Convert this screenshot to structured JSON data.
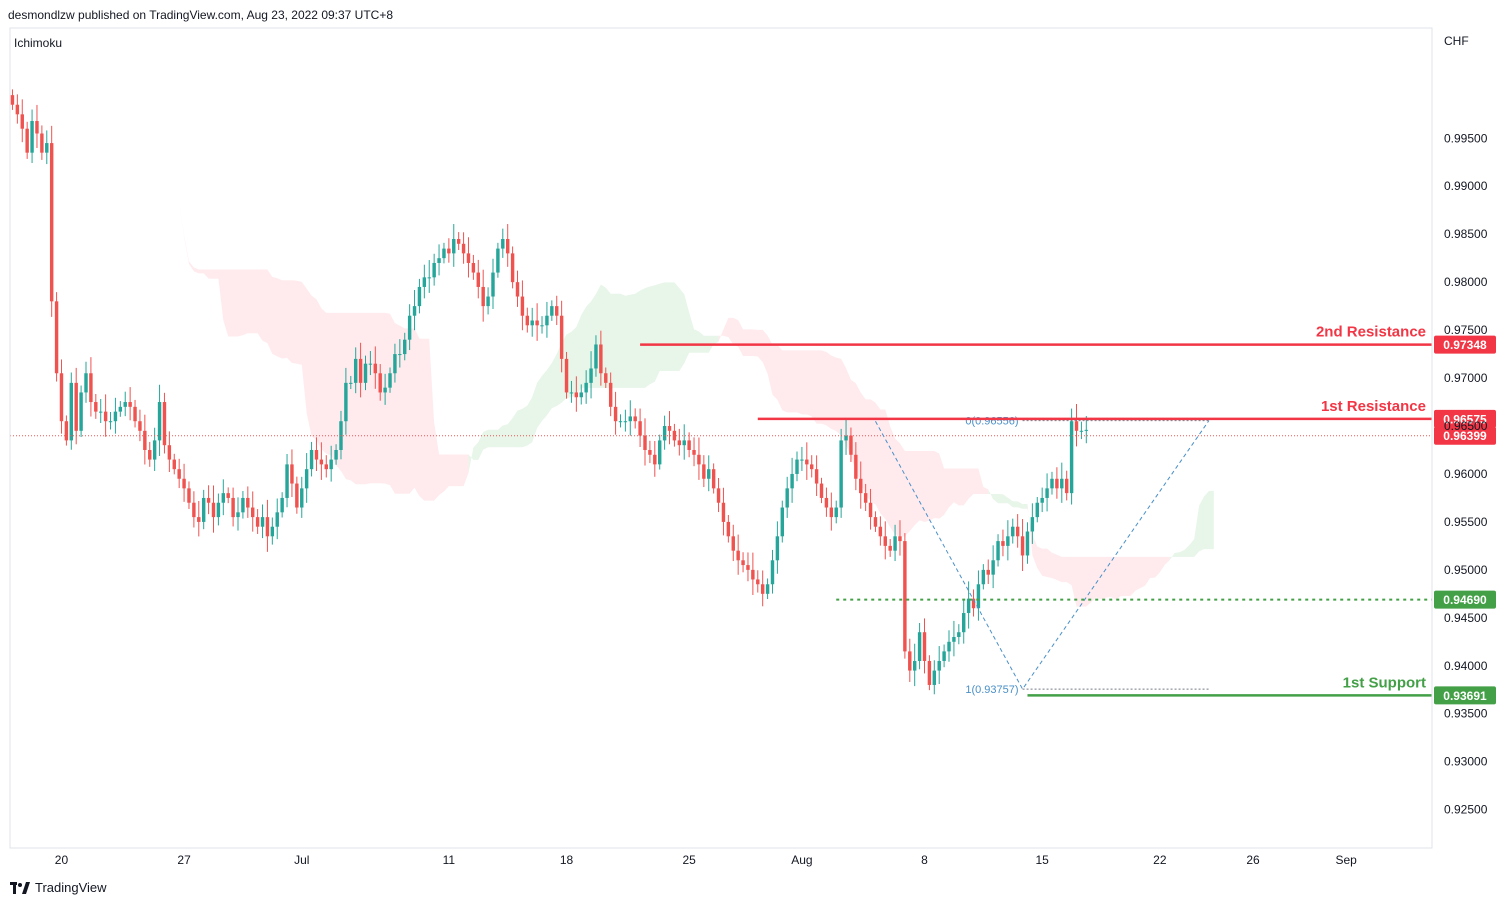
{
  "header": {
    "publisher": "desmondlzw published on TradingView.com, Aug 23, 2022 09:37 UTC+8"
  },
  "indicator": {
    "name": "Ichimoku"
  },
  "footer": {
    "brand": "TradingView"
  },
  "colors": {
    "bull": "#26a69a",
    "bear": "#ef5350",
    "resistance": "#f23645",
    "support": "#43a047",
    "support_dark": "#2e7d32",
    "fib": "#4a90c8",
    "cloud_green": "#e8f5e9",
    "cloud_red": "#ffebee"
  },
  "chart_data": {
    "type": "candlestick",
    "currency": "CHF",
    "ylim": [
      0.921,
      1.0065
    ],
    "y_ticks": [
      "0.99500",
      "0.99000",
      "0.98500",
      "0.98000",
      "0.97500",
      "0.97000",
      "0.96500",
      "0.96000",
      "0.95500",
      "0.95000",
      "0.94500",
      "0.94000",
      "0.93500",
      "0.93000",
      "0.92500"
    ],
    "y_tick_values": [
      0.995,
      0.99,
      0.985,
      0.98,
      0.975,
      0.97,
      0.965,
      0.96,
      0.955,
      0.95,
      0.945,
      0.94,
      0.935,
      0.93,
      0.925
    ],
    "x_ticks": [
      "20",
      "27",
      "Jul",
      "11",
      "18",
      "25",
      "Aug",
      "8",
      "15",
      "22",
      "26",
      "Sep"
    ],
    "x_tick_bars": [
      10,
      35,
      59,
      89,
      113,
      138,
      161,
      186,
      210,
      234,
      253,
      272
    ],
    "total_bars": 290,
    "candles_close": [
      0.9985,
      0.9975,
      0.996,
      0.9935,
      0.9968,
      0.9955,
      0.9935,
      0.9945,
      0.978,
      0.9705,
      0.9655,
      0.9635,
      0.9695,
      0.9645,
      0.9685,
      0.9705,
      0.9675,
      0.9665,
      0.9665,
      0.9655,
      0.9655,
      0.9665,
      0.967,
      0.9675,
      0.967,
      0.9655,
      0.9645,
      0.9625,
      0.9615,
      0.9635,
      0.9675,
      0.963,
      0.9615,
      0.9605,
      0.9595,
      0.9585,
      0.957,
      0.9555,
      0.955,
      0.9575,
      0.957,
      0.9555,
      0.957,
      0.958,
      0.9575,
      0.9555,
      0.956,
      0.9575,
      0.9565,
      0.9555,
      0.9545,
      0.9555,
      0.9535,
      0.9545,
      0.956,
      0.9575,
      0.961,
      0.959,
      0.9565,
      0.9585,
      0.9605,
      0.9625,
      0.9615,
      0.961,
      0.9605,
      0.9615,
      0.9625,
      0.9655,
      0.9695,
      0.9695,
      0.972,
      0.9695,
      0.9715,
      0.9715,
      0.9705,
      0.9685,
      0.969,
      0.9705,
      0.9725,
      0.9725,
      0.974,
      0.9765,
      0.9775,
      0.9795,
      0.9805,
      0.9805,
      0.982,
      0.9825,
      0.9835,
      0.983,
      0.9845,
      0.984,
      0.983,
      0.982,
      0.981,
      0.9795,
      0.9775,
      0.9785,
      0.981,
      0.9835,
      0.9845,
      0.983,
      0.98,
      0.9785,
      0.9765,
      0.9755,
      0.976,
      0.9755,
      0.9755,
      0.9765,
      0.9775,
      0.9765,
      0.972,
      0.9685,
      0.9685,
      0.968,
      0.9685,
      0.9695,
      0.971,
      0.9735,
      0.9705,
      0.9695,
      0.967,
      0.9655,
      0.9655,
      0.9655,
      0.966,
      0.9655,
      0.964,
      0.9625,
      0.962,
      0.961,
      0.9635,
      0.965,
      0.9645,
      0.9635,
      0.963,
      0.9635,
      0.9625,
      0.962,
      0.961,
      0.9595,
      0.9605,
      0.9585,
      0.957,
      0.955,
      0.9535,
      0.952,
      0.951,
      0.9505,
      0.95,
      0.949,
      0.9485,
      0.9475,
      0.9485,
      0.951,
      0.9535,
      0.9565,
      0.9585,
      0.96,
      0.9615,
      0.9615,
      0.961,
      0.9605,
      0.959,
      0.9575,
      0.9565,
      0.9555,
      0.9565,
      0.9635,
      0.964,
      0.962,
      0.9595,
      0.958,
      0.957,
      0.9555,
      0.9545,
      0.9535,
      0.9525,
      0.952,
      0.9535,
      0.953,
      0.9415,
      0.9395,
      0.9405,
      0.9435,
      0.9405,
      0.938,
      0.9395,
      0.9405,
      0.9415,
      0.9425,
      0.943,
      0.9435,
      0.9455,
      0.947,
      0.946,
      0.9485,
      0.95,
      0.9495,
      0.951,
      0.953,
      0.9525,
      0.9535,
      0.9545,
      0.9535,
      0.9515,
      0.954,
      0.9555,
      0.957,
      0.9575,
      0.9585,
      0.9595,
      0.9585,
      0.9595,
      0.958,
      0.9655,
      0.9645,
      0.9645,
      0.9646
    ],
    "last_price": 0.96399,
    "levels": [
      {
        "name": "2nd Resistance",
        "value": 0.97348,
        "label": "0.97348",
        "style": "solid",
        "start_bar": 128
      },
      {
        "name": "1st Resistance",
        "value": 0.96575,
        "label": "0.96575",
        "style": "solid",
        "start_bar": 152
      },
      {
        "name": "",
        "value": 0.9469,
        "label": "0.94690",
        "style": "dotted",
        "start_bar": 168
      },
      {
        "name": "1st Support",
        "value": 0.93691,
        "label": "0.93691",
        "style": "solid",
        "start_bar": 207
      }
    ],
    "fib": {
      "level0_label": "0(0.96556)",
      "level0_value": 0.96556,
      "level1_label": "1(0.93757)",
      "level1_value": 0.93757,
      "start_bar": 206,
      "end_bar": 244
    }
  }
}
